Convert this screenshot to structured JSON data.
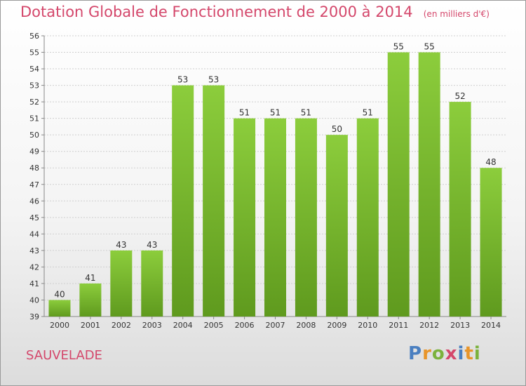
{
  "title": "Dotation Globale de Fonctionnement de 2000 à 2014",
  "unit": "(en milliers d'€)",
  "commune": "SAUVELADE",
  "logo_text": "Proxiti",
  "colors": {
    "accent": "#d4476b",
    "bar": "#7cc030",
    "bar_dark": "#5f9a1e"
  },
  "chart_data": {
    "type": "bar",
    "title": "Dotation Globale de Fonctionnement de 2000 à 2014",
    "subtitle": "(en milliers d'€)",
    "xlabel": "",
    "ylabel": "",
    "categories": [
      "2000",
      "2001",
      "2002",
      "2003",
      "2004",
      "2005",
      "2006",
      "2007",
      "2008",
      "2009",
      "2010",
      "2011",
      "2012",
      "2013",
      "2014"
    ],
    "values": [
      40,
      41,
      43,
      43,
      53,
      53,
      51,
      51,
      51,
      50,
      51,
      55,
      55,
      52,
      48
    ],
    "ylim": [
      39,
      56
    ],
    "yticks": [
      39,
      40,
      41,
      42,
      43,
      44,
      45,
      46,
      47,
      48,
      49,
      50,
      51,
      52,
      53,
      54,
      55,
      56
    ],
    "grid": true,
    "legend": "none"
  }
}
